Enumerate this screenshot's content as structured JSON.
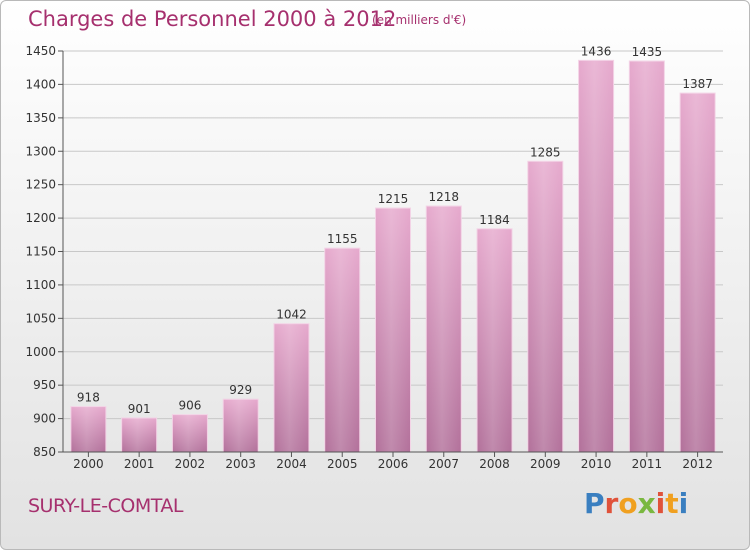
{
  "header": {
    "title": "Charges de Personnel 2000 à 2012",
    "unit": "(en milliers d'€)"
  },
  "footer": {
    "commune": "SURY-LE-COMTAL",
    "logo_text": "Proxiti",
    "logo_colors": [
      "#3a7fc0",
      "#e0523a",
      "#f0a020",
      "#7ab840",
      "#e0523a",
      "#f0a020",
      "#3a7fc0"
    ]
  },
  "chart_data": {
    "type": "bar",
    "title": "Charges de Personnel 2000 à 2012",
    "subtitle": "(en milliers d'€)",
    "categories": [
      "2000",
      "2001",
      "2002",
      "2003",
      "2004",
      "2005",
      "2006",
      "2007",
      "2008",
      "2009",
      "2010",
      "2011",
      "2012"
    ],
    "values": [
      918,
      901,
      906,
      929,
      1042,
      1155,
      1215,
      1218,
      1184,
      1285,
      1436,
      1435,
      1387
    ],
    "ylim": [
      850,
      1450
    ],
    "yticks": [
      850,
      900,
      950,
      1000,
      1050,
      1100,
      1150,
      1200,
      1250,
      1300,
      1350,
      1400,
      1450
    ],
    "grid": true,
    "bar_color_top": "#e6a9cd",
    "bar_color_bottom": "#b2709a"
  }
}
